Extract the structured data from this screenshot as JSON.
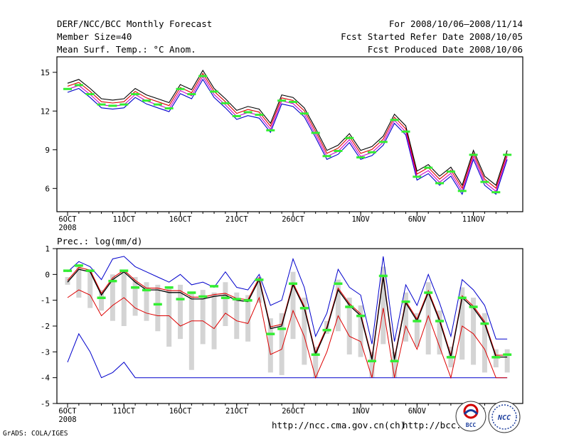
{
  "header": {
    "left": [
      "DERF/NCC/BCC Monthly Forecast",
      "Member Size=40",
      "Mean Surf. Temp.: °C Anom."
    ],
    "right": [
      "For 2008/10/06—2008/11/14",
      "Fcst Started Refer Date 2008/10/05",
      "Fcst Produced Date 2008/10/06"
    ]
  },
  "footer": {
    "grads": "GrADS: COLA/IGES",
    "url1": "http://ncc.cma.gov.cn(ch)",
    "url2": "http://bcc.",
    "logo1": "BCC",
    "logo2": "NCC"
  },
  "colors": {
    "ensemble_mean": "#000000",
    "max": "#0000cc",
    "min": "#dd0000",
    "obs": "#33ee33",
    "spread": "#d4d4d4",
    "magenta": "#cc00cc"
  },
  "chart_data": [
    {
      "type": "line",
      "title": "Mean Surf. Temp.: °C Anom.",
      "ylim": [
        4.2,
        16.2
      ],
      "yticks": [
        6,
        9,
        12,
        15
      ],
      "x_day_range": [
        0,
        39
      ],
      "xticks": [
        {
          "day": 0,
          "label": "6OCT",
          "sublabel": "2008"
        },
        {
          "day": 5,
          "label": "11OCT"
        },
        {
          "day": 10,
          "label": "16OCT"
        },
        {
          "day": 15,
          "label": "21OCT"
        },
        {
          "day": 20,
          "label": "26OCT"
        },
        {
          "day": 26,
          "label": "1NOV"
        },
        {
          "day": 31,
          "label": "6NOV"
        },
        {
          "day": 36,
          "label": "11NOV"
        }
      ],
      "series": [
        {
          "name": "ensemble",
          "values": [
            13.8,
            14.1,
            13.4,
            12.6,
            12.5,
            12.6,
            13.4,
            12.9,
            12.6,
            12.3,
            13.7,
            13.3,
            14.8,
            13.4,
            12.6,
            11.7,
            12.0,
            11.8,
            10.7,
            12.9,
            12.7,
            11.9,
            10.3,
            8.6,
            9.0,
            9.9,
            8.6,
            8.9,
            9.7,
            11.4,
            10.5,
            7.0,
            7.5,
            6.6,
            7.3,
            5.9,
            8.6,
            6.6,
            5.9,
            8.6
          ]
        },
        {
          "name": "obs",
          "values": [
            13.9,
            14.2,
            13.5,
            12.7,
            12.6,
            12.7,
            13.5,
            13.0,
            12.7,
            12.4,
            13.9,
            13.5,
            14.9,
            13.7,
            12.8,
            11.8,
            12.1,
            11.9,
            10.7,
            13.0,
            12.9,
            12.0,
            10.5,
            8.7,
            9.1,
            10.1,
            8.6,
            9.0,
            9.8,
            11.5,
            10.6,
            7.1,
            7.8,
            6.6,
            7.5,
            6.0,
            8.8,
            6.7,
            5.9,
            8.8
          ]
        }
      ]
    },
    {
      "type": "line",
      "title": "Prec.: log(mm/d)",
      "ylim": [
        -5,
        1
      ],
      "yticks": [
        1,
        0,
        -1,
        -2,
        -3,
        -4,
        -5
      ],
      "x_day_range": [
        0,
        39
      ],
      "xticks": [
        {
          "day": 0,
          "label": "6OCT",
          "sublabel": "2008"
        },
        {
          "day": 5,
          "label": "11OCT"
        },
        {
          "day": 10,
          "label": "16OCT"
        },
        {
          "day": 15,
          "label": "21OCT"
        },
        {
          "day": 20,
          "label": "26OCT"
        },
        {
          "day": 26,
          "label": "1NOV"
        },
        {
          "day": 31,
          "label": "6NOV"
        },
        {
          "day": 36,
          "label": "11NOV"
        }
      ],
      "series": [
        {
          "name": "ensemble_mean",
          "values": [
            -0.3,
            0.2,
            0.1,
            -0.8,
            -0.2,
            0.1,
            -0.3,
            -0.6,
            -0.6,
            -0.7,
            -0.7,
            -0.95,
            -0.95,
            -0.85,
            -0.8,
            -1.0,
            -1.05,
            -0.2,
            -2.1,
            -2.0,
            -0.4,
            -1.3,
            -3.1,
            -2.1,
            -0.6,
            -1.2,
            -1.6,
            -3.3,
            -0.1,
            -3.3,
            -1.1,
            -1.8,
            -0.7,
            -1.8,
            -3.2,
            -0.9,
            -1.3,
            -1.9,
            -3.2,
            -3.2
          ]
        },
        {
          "name": "max",
          "values": [
            0.1,
            0.5,
            0.3,
            -0.2,
            0.6,
            0.7,
            0.3,
            0.1,
            -0.1,
            -0.3,
            0.0,
            -0.4,
            -0.3,
            -0.5,
            0.1,
            -0.5,
            -0.6,
            0.0,
            -1.2,
            -1.0,
            0.6,
            -0.5,
            -2.4,
            -1.5,
            0.2,
            -0.5,
            -0.8,
            -2.7,
            0.7,
            -2.6,
            -0.4,
            -1.2,
            0.0,
            -1.1,
            -2.4,
            -0.2,
            -0.6,
            -1.2,
            -2.5,
            -2.5
          ]
        },
        {
          "name": "min",
          "values": [
            -0.9,
            -0.6,
            -0.8,
            -1.6,
            -1.2,
            -0.9,
            -1.3,
            -1.5,
            -1.6,
            -1.6,
            -2.0,
            -1.8,
            -1.8,
            -2.1,
            -1.5,
            -1.8,
            -1.9,
            -0.9,
            -3.1,
            -2.9,
            -1.4,
            -2.4,
            -4.0,
            -3.0,
            -1.6,
            -2.4,
            -2.6,
            -4.0,
            -1.3,
            -4.0,
            -2.0,
            -2.9,
            -1.6,
            -2.8,
            -4.0,
            -2.0,
            -2.3,
            -2.9,
            -4.0,
            -4.0
          ]
        },
        {
          "name": "min_member",
          "values": [
            -3.4,
            -2.3,
            -3.0,
            -4.0,
            -3.8,
            -3.4,
            -4.0,
            -4.0,
            -4.0,
            -4.0,
            -4.0,
            -4.0,
            -4.0,
            -4.0,
            -4.0,
            -4.0,
            -4.0,
            -4.0,
            -4.0,
            -4.0,
            -4.0,
            -4.0,
            -4.0,
            -4.0,
            -4.0,
            -4.0,
            -4.0,
            -4.0,
            -4.0,
            -4.0,
            -4.0,
            -4.0,
            -4.0,
            -4.0,
            -4.0,
            -4.0,
            -4.0,
            -4.0,
            -4.0,
            -4.0
          ]
        },
        {
          "name": "spread_bar_top",
          "values": [
            -0.1,
            0.3,
            0.1,
            -0.6,
            0.0,
            0.1,
            -0.1,
            -0.3,
            -0.4,
            -0.5,
            -0.4,
            -0.7,
            -0.6,
            -0.7,
            -0.3,
            -0.7,
            -0.8,
            -0.1,
            -1.7,
            -1.5,
            0.1,
            -0.9,
            -2.8,
            -1.8,
            -0.2,
            -0.9,
            -1.2,
            -3.0,
            0.3,
            -3.0,
            -0.7,
            -1.5,
            -0.3,
            -1.4,
            -2.8,
            -0.5,
            -0.9,
            -1.5,
            -2.9,
            -2.9
          ]
        },
        {
          "name": "spread_bar_bottom",
          "values": [
            -0.4,
            -0.9,
            -1.3,
            -1.4,
            -1.8,
            -2.0,
            -1.6,
            -1.8,
            -2.2,
            -2.8,
            -2.5,
            -3.7,
            -2.7,
            -2.9,
            -2.0,
            -2.5,
            -2.6,
            -1.1,
            -3.8,
            -3.9,
            -2.5,
            -3.5,
            -4.0,
            -2.3,
            -2.2,
            -3.1,
            -3.2,
            -4.0,
            -2.7,
            -4.0,
            -2.6,
            -2.8,
            -3.1,
            -3.1,
            -3.6,
            -3.3,
            -3.5,
            -3.8,
            -3.6,
            -3.8
          ]
        },
        {
          "name": "obs",
          "values": [
            0.15,
            0.35,
            0.15,
            -0.9,
            -0.25,
            0.15,
            -0.5,
            -0.6,
            -1.15,
            -0.5,
            -0.95,
            -0.7,
            -0.85,
            -0.45,
            -0.9,
            -0.95,
            -1.0,
            -0.2,
            -2.3,
            -2.1,
            -0.35,
            -1.3,
            -3.1,
            -2.15,
            -0.35,
            -1.25,
            -1.6,
            -3.35,
            -0.05,
            -3.35,
            -1.05,
            -1.8,
            -0.7,
            -1.8,
            -3.2,
            -0.9,
            -1.25,
            -1.9,
            -3.2,
            -3.1
          ]
        }
      ]
    }
  ],
  "panels": [
    {
      "ylabels": [
        "15",
        "12",
        "9",
        "6"
      ],
      "xlabels": [
        "6OCT",
        "11OCT",
        "16OCT",
        "21OCT",
        "26OCT",
        "1NOV",
        "6NOV",
        "11NOV"
      ],
      "sub": "2008"
    },
    {
      "ylabels": [
        "1",
        "0",
        "-1",
        "-2",
        "-3",
        "-4",
        "-5"
      ],
      "xlabels": [
        "6OCT",
        "11OCT",
        "16OCT",
        "21OCT",
        "26OCT",
        "1NOV",
        "6NOV",
        "11NOV"
      ],
      "sub": "2008"
    }
  ]
}
